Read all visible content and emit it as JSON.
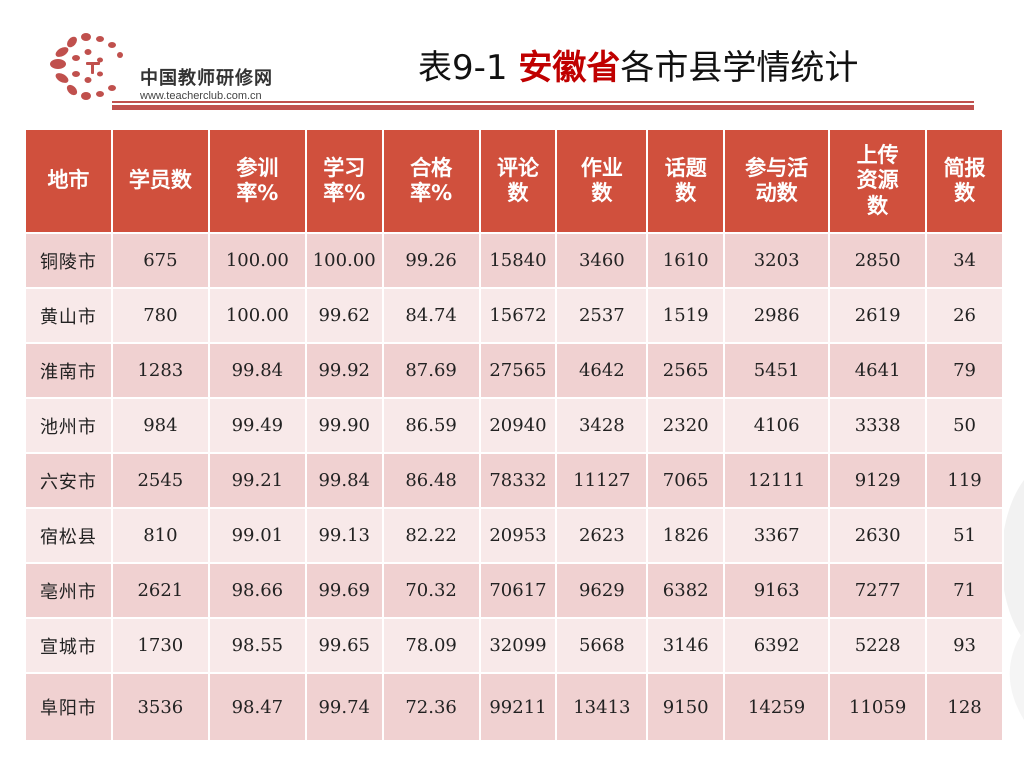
{
  "logo": {
    "name": "中国教师研修网",
    "url": "www.teacherclub.com.cn"
  },
  "title": {
    "prefix": "表9-1 ",
    "accent": "安徽省",
    "suffix": "各市县学情统计"
  },
  "colors": {
    "header_bg": "#d0503d",
    "row_odd": "#f0d1d1",
    "row_even": "#f8e9e9",
    "accent": "#c00000"
  },
  "table": {
    "headers": [
      "地市",
      "学员数",
      "参训率%",
      "学习率%",
      "合格率%",
      "评论数",
      "作业数",
      "话题数",
      "参与活动数",
      "上传资源数",
      "简报数"
    ],
    "rows": [
      [
        "铜陵市",
        "675",
        "100.00",
        "100.00",
        "99.26",
        "15840",
        "3460",
        "1610",
        "3203",
        "2850",
        "34"
      ],
      [
        "黄山市",
        "780",
        "100.00",
        "99.62",
        "84.74",
        "15672",
        "2537",
        "1519",
        "2986",
        "2619",
        "26"
      ],
      [
        "淮南市",
        "1283",
        "99.84",
        "99.92",
        "87.69",
        "27565",
        "4642",
        "2565",
        "5451",
        "4641",
        "79"
      ],
      [
        "池州市",
        "984",
        "99.49",
        "99.90",
        "86.59",
        "20940",
        "3428",
        "2320",
        "4106",
        "3338",
        "50"
      ],
      [
        "六安市",
        "2545",
        "99.21",
        "99.84",
        "86.48",
        "78332",
        "11127",
        "7065",
        "12111",
        "9129",
        "119"
      ],
      [
        "宿松县",
        "810",
        "99.01",
        "99.13",
        "82.22",
        "20953",
        "2623",
        "1826",
        "3367",
        "2630",
        "51"
      ],
      [
        "亳州市",
        "2621",
        "98.66",
        "99.69",
        "70.32",
        "70617",
        "9629",
        "6382",
        "9163",
        "7277",
        "71"
      ],
      [
        "宣城市",
        "1730",
        "98.55",
        "99.65",
        "78.09",
        "32099",
        "5668",
        "3146",
        "6392",
        "5228",
        "93"
      ],
      [
        "阜阳市",
        "3536",
        "98.47",
        "99.74",
        "72.36",
        "99211",
        "13413",
        "9150",
        "14259",
        "11059",
        "128"
      ]
    ]
  }
}
